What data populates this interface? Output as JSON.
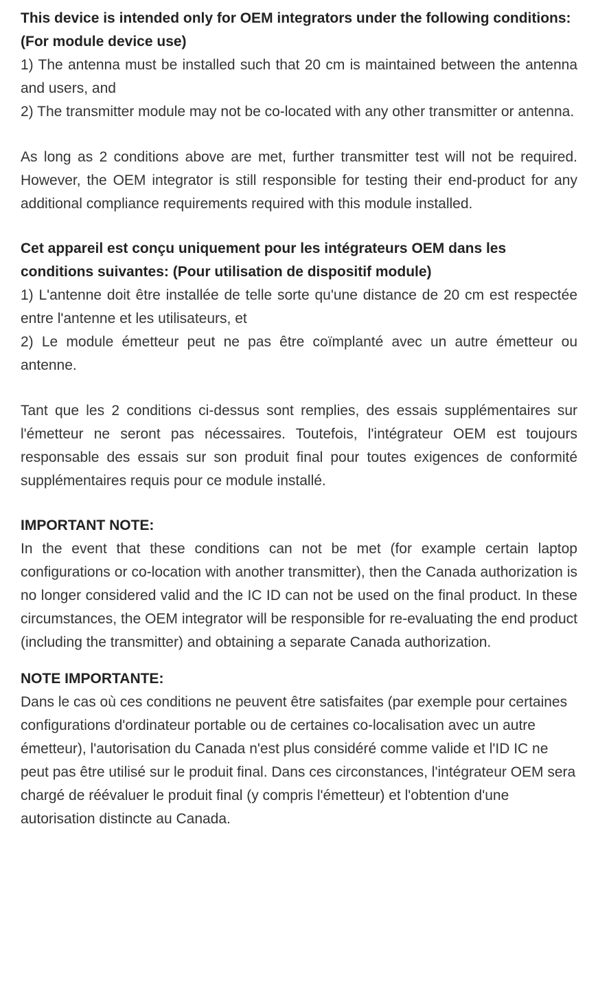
{
  "en_heading1": "This device is intended only for OEM integrators under the following conditions:",
  "en_heading2": "(For module device use)",
  "en_cond1": "1) The antenna must be installed such that 20 cm is maintained between the antenna and users, and",
  "en_cond2": "2) The transmitter module may not be co-located with any other transmitter or antenna.",
  "en_para1": "As long as 2 conditions above are met, further transmitter test will not be required. However, the OEM integrator is still responsible for testing their end-product for any additional compliance requirements required with this module installed.",
  "fr_heading1": "Cet appareil est conçu uniquement pour les intégrateurs OEM dans les conditions suivantes: (Pour utilisation de dispositif module)",
  "fr_cond1": "1) L'antenne doit être installée de telle sorte qu'une distance de 20 cm est respectée entre l'antenne et les utilisateurs, et",
  "fr_cond2": "2) Le module émetteur peut ne pas être coïmplanté avec un autre émetteur ou antenne.",
  "fr_para1": "Tant que les 2 conditions ci-dessus sont remplies, des essais supplémentaires sur l'émetteur ne seront pas nécessaires. Toutefois, l'intégrateur OEM est toujours responsable des essais sur son produit final pour toutes exigences de conformité supplémentaires requis pour ce module installé.",
  "en_important_heading": "IMPORTANT NOTE:",
  "en_important_body": "In the event that these conditions can not be met (for example certain laptop configurations or co-location with another transmitter), then the Canada authorization is no longer considered valid and the IC ID can not be used on the final product. In these circumstances, the OEM integrator will be responsible for re-evaluating the end product (including the transmitter) and obtaining a separate Canada authorization.",
  "fr_important_heading": "NOTE IMPORTANTE:",
  "fr_important_body": "Dans le cas où ces conditions ne peuvent être satisfaites (par exemple pour certaines configurations d'ordinateur portable ou de certaines co-localisation avec un autre émetteur), l'autorisation du Canada n'est plus considéré comme valide et l'ID IC ne peut pas être utilisé sur le produit final. Dans ces circonstances, l'intégrateur OEM sera chargé de réévaluer le produit final (y compris l'émetteur) et l'obtention d'une autorisation distincte au Canada."
}
